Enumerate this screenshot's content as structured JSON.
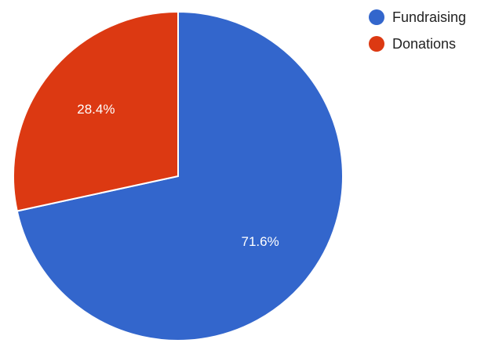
{
  "chart_data": {
    "type": "pie",
    "title": "",
    "categories": [
      "Fundraising",
      "Donations"
    ],
    "values": [
      71.6,
      28.4
    ],
    "data_labels": [
      "71.6%",
      "28.4%"
    ],
    "colors": [
      "#3366CC",
      "#DC3912"
    ],
    "legend_position": "top-right",
    "start_angle": "12 o'clock",
    "direction": "clockwise"
  }
}
